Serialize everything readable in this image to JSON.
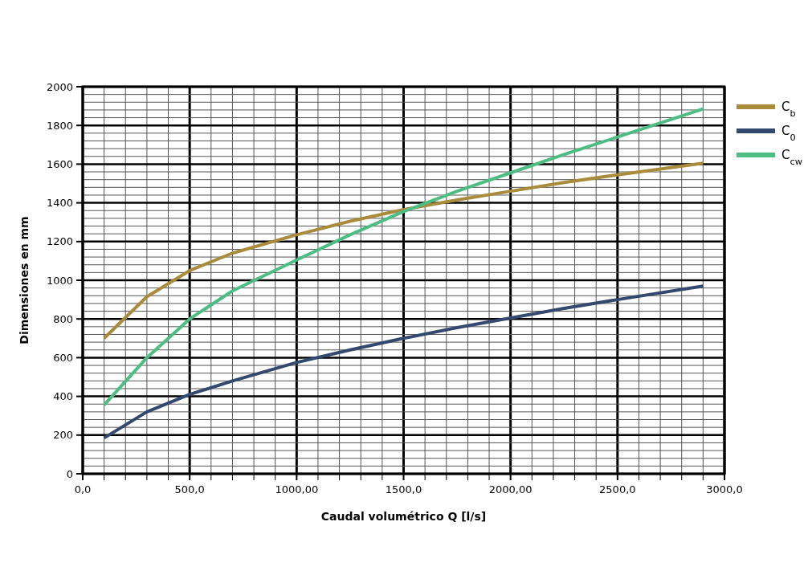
{
  "chart_data": {
    "type": "line",
    "xlabel": "Caudal volumétrico Q [l/s]",
    "ylabel": "Dimensiones en mm",
    "x": [
      100,
      300,
      500,
      700,
      1000,
      1250,
      1500,
      1750,
      2000,
      2250,
      2500,
      2900
    ],
    "series": [
      {
        "name": "C$_{b}$",
        "color": "#a88c3c",
        "values": [
          700,
          915,
          1050,
          1140,
          1235,
          1305,
          1365,
          1415,
          1460,
          1505,
          1545,
          1605
        ]
      },
      {
        "name": "C$_{0}$",
        "color": "#34496e",
        "values": [
          185,
          320,
          410,
          480,
          575,
          640,
          700,
          755,
          805,
          855,
          900,
          970
        ]
      },
      {
        "name": "C$_{cw}$",
        "color": "#4dbd84",
        "values": [
          355,
          600,
          800,
          945,
          1105,
          1235,
          1355,
          1460,
          1555,
          1650,
          1740,
          1885
        ]
      }
    ],
    "xlim": [
      0,
      3000
    ],
    "xticks": [
      {
        "value": 0,
        "label": "0,0"
      },
      {
        "value": 100,
        "label": null
      },
      {
        "value": 200,
        "label": null
      },
      {
        "value": 300,
        "label": null
      },
      {
        "value": 400,
        "label": null
      },
      {
        "value": 500,
        "label": "500,0"
      },
      {
        "value": 600,
        "label": null
      },
      {
        "value": 700,
        "label": null
      },
      {
        "value": 800,
        "label": null
      },
      {
        "value": 900,
        "label": null
      },
      {
        "value": 1000,
        "label": "1000,00"
      },
      {
        "value": 1100,
        "label": null
      },
      {
        "value": 1200,
        "label": null
      },
      {
        "value": 1300,
        "label": null
      },
      {
        "value": 1400,
        "label": null
      },
      {
        "value": 1500,
        "label": "1500,0"
      },
      {
        "value": 1600,
        "label": null
      },
      {
        "value": 1700,
        "label": null
      },
      {
        "value": 1800,
        "label": null
      },
      {
        "value": 1900,
        "label": null
      },
      {
        "value": 2000,
        "label": "2000,00"
      },
      {
        "value": 2100,
        "label": null
      },
      {
        "value": 2200,
        "label": null
      },
      {
        "value": 2300,
        "label": null
      },
      {
        "value": 2400,
        "label": null
      },
      {
        "value": 2500,
        "label": "2500,0"
      },
      {
        "value": 2600,
        "label": null
      },
      {
        "value": 2700,
        "label": null
      },
      {
        "value": 2800,
        "label": null
      },
      {
        "value": 2900,
        "label": null
      },
      {
        "value": 3000,
        "label": "3000,0"
      }
    ],
    "ylim": [
      0,
      2000
    ],
    "yticks": [
      0,
      {
        "value": 40,
        "label": null
      },
      {
        "value": 80,
        "label": null
      },
      {
        "value": 120,
        "label": null
      },
      {
        "value": 160,
        "label": null
      },
      200,
      {
        "value": 240,
        "label": null
      },
      {
        "value": 280,
        "label": null
      },
      {
        "value": 320,
        "label": null
      },
      {
        "value": 360,
        "label": null
      },
      400,
      {
        "value": 440,
        "label": null
      },
      {
        "value": 480,
        "label": null
      },
      {
        "value": 520,
        "label": null
      },
      {
        "value": 560,
        "label": null
      },
      600,
      {
        "value": 640,
        "label": null
      },
      {
        "value": 680,
        "label": null
      },
      {
        "value": 720,
        "label": null
      },
      {
        "value": 760,
        "label": null
      },
      800,
      {
        "value": 840,
        "label": null
      },
      {
        "value": 880,
        "label": null
      },
      {
        "value": 920,
        "label": null
      },
      {
        "value": 960,
        "label": null
      },
      1000,
      {
        "value": 1040,
        "label": null
      },
      {
        "value": 1080,
        "label": null
      },
      {
        "value": 1120,
        "label": null
      },
      {
        "value": 1160,
        "label": null
      },
      1200,
      {
        "value": 1240,
        "label": null
      },
      {
        "value": 1280,
        "label": null
      },
      {
        "value": 1320,
        "label": null
      },
      {
        "value": 1360,
        "label": null
      },
      1400,
      {
        "value": 1440,
        "label": null
      },
      {
        "value": 1480,
        "label": null
      },
      {
        "value": 1520,
        "label": null
      },
      {
        "value": 1560,
        "label": null
      },
      1600,
      {
        "value": 1640,
        "label": null
      },
      {
        "value": 1680,
        "label": null
      },
      {
        "value": 1720,
        "label": null
      },
      {
        "value": 1760,
        "label": null
      },
      1800,
      {
        "value": 1840,
        "label": null
      },
      {
        "value": 1880,
        "label": null
      },
      {
        "value": 1920,
        "label": null
      },
      {
        "value": 1960,
        "label": null
      },
      2000
    ],
    "grid": true,
    "legend": "top right",
    "line_style": "solid"
  }
}
